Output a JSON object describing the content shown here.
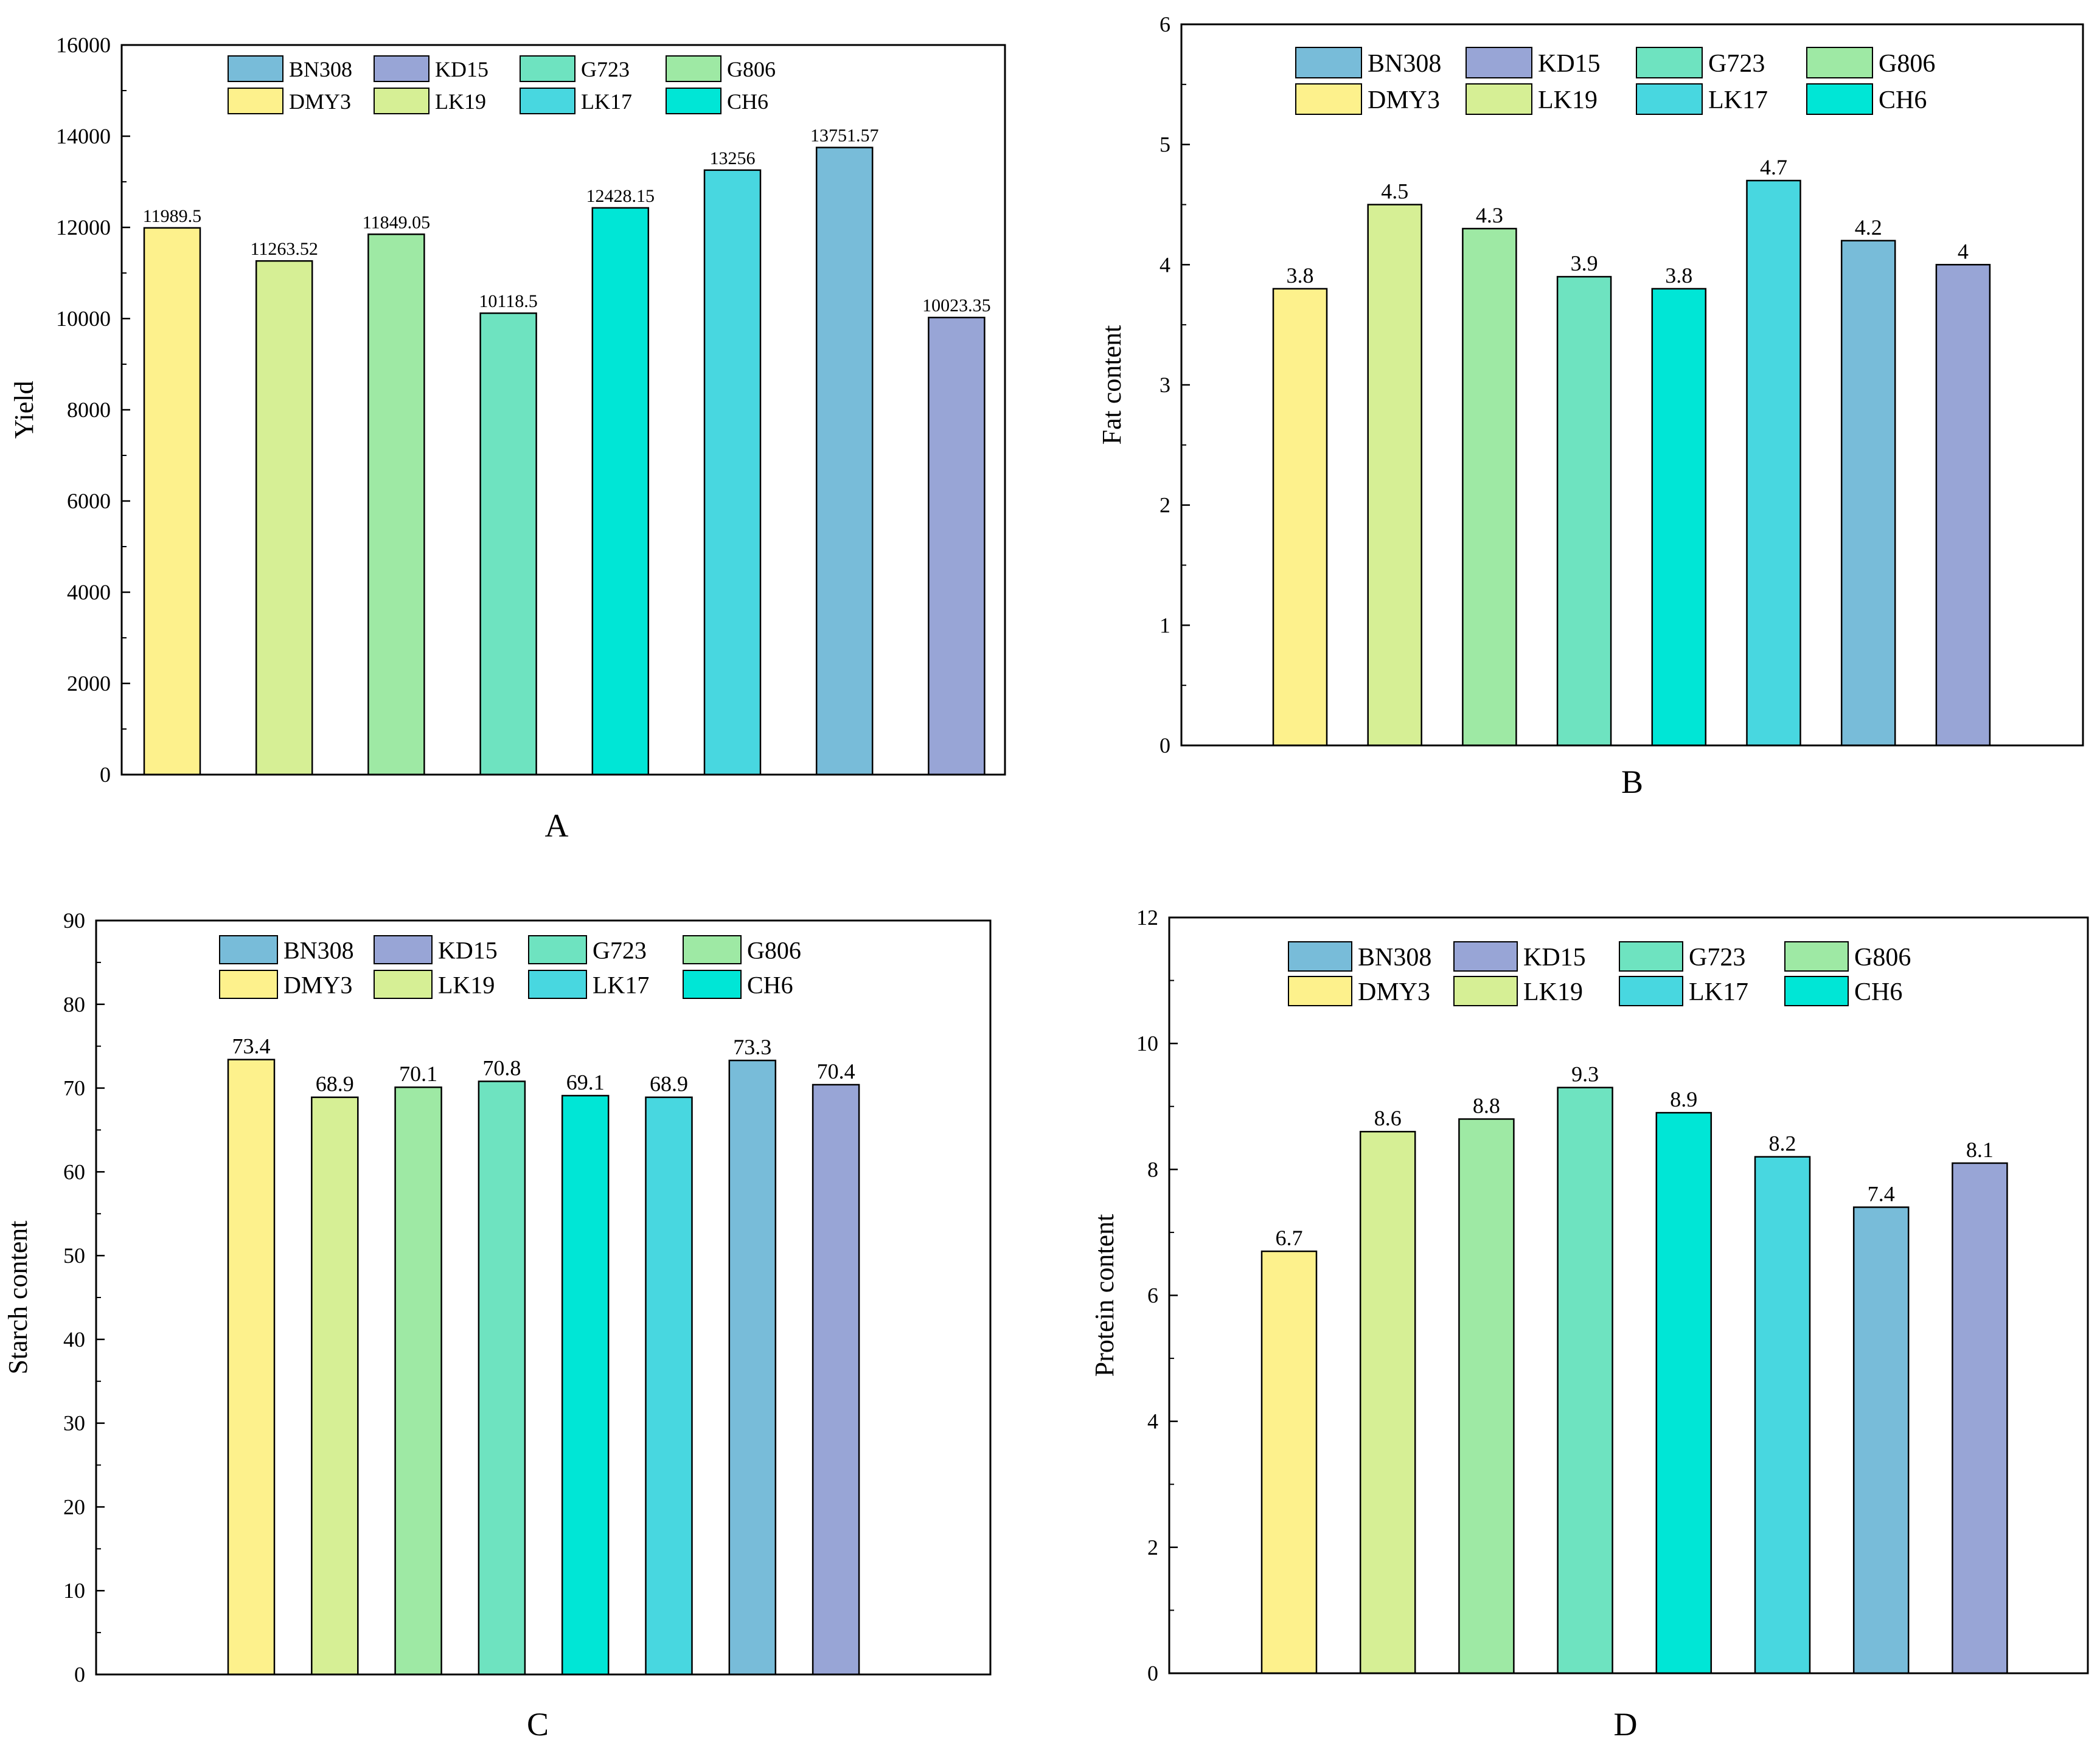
{
  "colors": {
    "DMY3": "#fdf18c",
    "LK19": "#d6ef95",
    "G806": "#9ee9a4",
    "G723": "#6ee3c0",
    "CH6": "#00e6d6",
    "LK17": "#48d7e0",
    "BN308": "#78bcd9",
    "KD15": "#98a5d6"
  },
  "chart_data": [
    {
      "id": "A",
      "type": "bar",
      "panel_label": "A",
      "ylabel": "Yield",
      "xlabel": "",
      "ylim": [
        0,
        16000
      ],
      "yticks": [
        0,
        2000,
        4000,
        6000,
        8000,
        10000,
        12000,
        14000,
        16000
      ],
      "categories": [
        "DMY3",
        "LK19",
        "G806",
        "G723",
        "CH6",
        "LK17",
        "BN308",
        "KD15"
      ],
      "values": [
        11989.5,
        11263.52,
        11849.05,
        10118.5,
        12428.15,
        13256,
        13751.57,
        10023.35
      ],
      "value_labels": [
        "11989.5",
        "11263.52",
        "11849.05",
        "10118.5",
        "12428.15",
        "13256",
        "13751.57",
        "10023.35"
      ],
      "legend": [
        "BN308",
        "KD15",
        "G723",
        "G806",
        "DMY3",
        "LK19",
        "LK17",
        "CH6"
      ],
      "legend_position": "top"
    },
    {
      "id": "B",
      "type": "bar",
      "panel_label": "B",
      "ylabel": "Fat content",
      "xlabel": "",
      "ylim": [
        0,
        6
      ],
      "yticks": [
        0,
        1,
        2,
        3,
        4,
        5,
        6
      ],
      "categories": [
        "DMY3",
        "LK19",
        "G806",
        "G723",
        "CH6",
        "LK17",
        "BN308",
        "KD15"
      ],
      "values": [
        3.8,
        4.5,
        4.3,
        3.9,
        3.8,
        4.7,
        4.2,
        4
      ],
      "value_labels": [
        "3.8",
        "4.5",
        "4.3",
        "3.9",
        "3.8",
        "4.7",
        "4.2",
        "4"
      ],
      "legend": [
        "BN308",
        "KD15",
        "G723",
        "G806",
        "DMY3",
        "LK19",
        "LK17",
        "CH6"
      ],
      "legend_position": "top"
    },
    {
      "id": "C",
      "type": "bar",
      "panel_label": "C",
      "ylabel": "Starch content",
      "xlabel": "",
      "ylim": [
        0,
        90
      ],
      "yticks": [
        0,
        10,
        20,
        30,
        40,
        50,
        60,
        70,
        80,
        90
      ],
      "categories": [
        "DMY3",
        "LK19",
        "G806",
        "G723",
        "CH6",
        "LK17",
        "BN308",
        "KD15"
      ],
      "values": [
        73.4,
        68.9,
        70.1,
        70.8,
        69.1,
        68.9,
        73.3,
        70.4
      ],
      "value_labels": [
        "73.4",
        "68.9",
        "70.1",
        "70.8",
        "69.1",
        "68.9",
        "73.3",
        "70.4"
      ],
      "legend": [
        "BN308",
        "KD15",
        "G723",
        "G806",
        "DMY3",
        "LK19",
        "LK17",
        "CH6"
      ],
      "legend_position": "top"
    },
    {
      "id": "D",
      "type": "bar",
      "panel_label": "D",
      "ylabel": "Protein content",
      "xlabel": "",
      "ylim": [
        0,
        12
      ],
      "yticks": [
        0,
        2,
        4,
        6,
        8,
        10,
        12
      ],
      "categories": [
        "DMY3",
        "LK19",
        "G806",
        "G723",
        "CH6",
        "LK17",
        "BN308",
        "KD15"
      ],
      "values": [
        6.7,
        8.6,
        8.8,
        9.3,
        8.9,
        8.2,
        7.4,
        8.1
      ],
      "value_labels": [
        "6.7",
        "8.6",
        "8.8",
        "9.3",
        "8.9",
        "8.2",
        "7.4",
        "8.1"
      ],
      "legend": [
        "BN308",
        "KD15",
        "G723",
        "G806",
        "DMY3",
        "LK19",
        "LK17",
        "CH6"
      ],
      "legend_position": "top"
    }
  ]
}
